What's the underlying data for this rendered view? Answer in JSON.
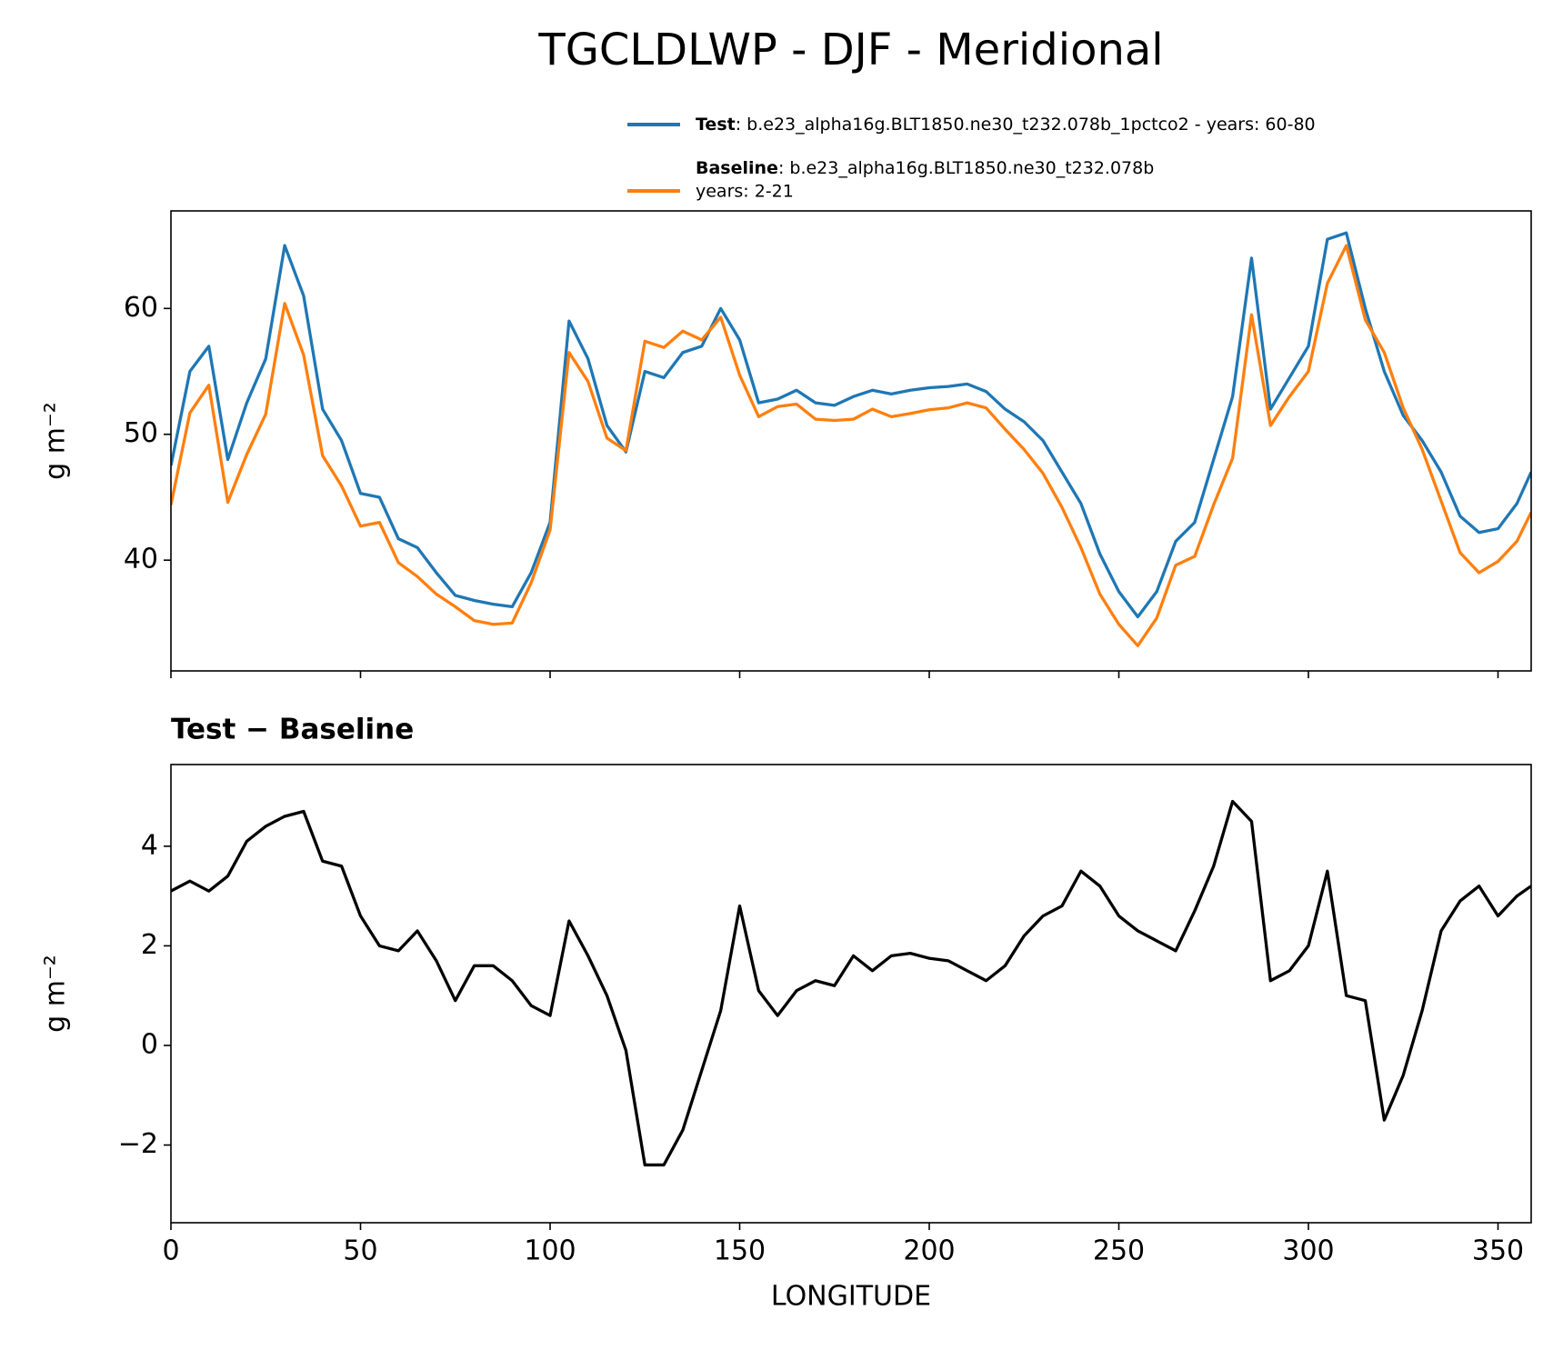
{
  "title": "TGCLDLWP - DJF - Meridional",
  "chart_data": [
    {
      "type": "line",
      "x": [
        0,
        5,
        10,
        15,
        20,
        25,
        30,
        35,
        40,
        45,
        50,
        55,
        60,
        65,
        70,
        75,
        80,
        85,
        90,
        95,
        100,
        105,
        110,
        115,
        120,
        125,
        130,
        135,
        140,
        145,
        150,
        155,
        160,
        165,
        170,
        175,
        180,
        185,
        190,
        195,
        200,
        205,
        210,
        215,
        220,
        225,
        230,
        235,
        240,
        245,
        250,
        255,
        260,
        265,
        270,
        275,
        280,
        285,
        290,
        295,
        300,
        305,
        310,
        315,
        320,
        325,
        330,
        335,
        340,
        345,
        350,
        355,
        358.75
      ],
      "series": [
        {
          "name": "Test",
          "description": [
            ": b.e23_alpha16g.BLT1850.ne30_t232.078b_1pctco2 - years: 60-80"
          ],
          "color": "#1f77b4",
          "values": [
            47.5,
            55,
            57,
            48,
            52.5,
            56,
            65,
            61,
            52,
            49.5,
            45.3,
            45,
            41.7,
            41,
            39,
            37.2,
            36.8,
            36.5,
            36.3,
            39,
            43,
            59,
            56,
            50.7,
            48.6,
            55,
            54.5,
            56.5,
            57,
            60,
            57.5,
            52.5,
            52.8,
            53.5,
            52.5,
            52.3,
            53,
            53.5,
            53.2,
            53.5,
            53.7,
            53.8,
            54,
            53.4,
            52,
            51,
            49.5,
            47,
            44.5,
            40.5,
            37.5,
            35.5,
            37.5,
            41.5,
            43,
            48,
            53,
            64,
            52,
            54.5,
            57,
            65.5,
            66,
            60,
            55,
            51.5,
            49.5,
            47,
            43.5,
            42.2,
            42.5,
            44.5,
            47
          ]
        },
        {
          "name": "Baseline",
          "description": [
            ": b.e23_alpha16g.BLT1850.ne30_t232.078b",
            "years: 2-21"
          ],
          "color": "#ff7f0e",
          "values": [
            44.4,
            51.7,
            53.9,
            44.6,
            48.4,
            51.6,
            60.4,
            56.3,
            48.3,
            45.9,
            42.7,
            43,
            39.8,
            38.7,
            37.3,
            36.3,
            35.2,
            34.9,
            35,
            38.2,
            42.4,
            56.5,
            54.2,
            49.7,
            48.7,
            57.4,
            56.9,
            58.2,
            57.5,
            59.3,
            54.7,
            51.4,
            52.2,
            52.4,
            51.2,
            51.1,
            51.2,
            52,
            51.4,
            51.65,
            51.95,
            52.1,
            52.5,
            52.1,
            50.4,
            48.8,
            46.9,
            44.2,
            41,
            37.3,
            34.9,
            33.2,
            35.4,
            39.6,
            40.3,
            44.4,
            48.1,
            59.5,
            50.7,
            53,
            55,
            62,
            65,
            59.1,
            56.5,
            52.1,
            48.8,
            44.7,
            40.6,
            39,
            39.9,
            41.5,
            43.8
          ]
        }
      ],
      "ylabel": "g m⁻²",
      "xlim": [
        0,
        358.75
      ],
      "xticks": [
        0,
        50,
        100,
        150,
        200,
        250,
        300,
        350
      ],
      "show_xtick_labels": false,
      "ylim": [
        31.2,
        67.75
      ],
      "yticks": [
        40,
        50,
        60
      ]
    },
    {
      "type": "line",
      "title": "Test − Baseline",
      "x": [
        0,
        5,
        10,
        15,
        20,
        25,
        30,
        35,
        40,
        45,
        50,
        55,
        60,
        65,
        70,
        75,
        80,
        85,
        90,
        95,
        100,
        105,
        110,
        115,
        120,
        125,
        130,
        135,
        140,
        145,
        150,
        155,
        160,
        165,
        170,
        175,
        180,
        185,
        190,
        195,
        200,
        205,
        210,
        215,
        220,
        225,
        230,
        235,
        240,
        245,
        250,
        255,
        260,
        265,
        270,
        275,
        280,
        285,
        290,
        295,
        300,
        305,
        310,
        315,
        320,
        325,
        330,
        335,
        340,
        345,
        350,
        355,
        358.75
      ],
      "series": [
        {
          "color": "#000000",
          "values": [
            3.1,
            3.3,
            3.1,
            3.4,
            4.1,
            4.4,
            4.6,
            4.7,
            3.7,
            3.6,
            2.6,
            2,
            1.9,
            2.3,
            1.7,
            0.9,
            1.6,
            1.6,
            1.3,
            0.8,
            0.6,
            2.5,
            1.8,
            1,
            -0.1,
            -2.4,
            -2.4,
            -1.7,
            -0.5,
            0.7,
            2.8,
            1.1,
            0.6,
            1.1,
            1.3,
            1.2,
            1.8,
            1.5,
            1.8,
            1.85,
            1.75,
            1.7,
            1.5,
            1.3,
            1.6,
            2.2,
            2.6,
            2.8,
            3.5,
            3.2,
            2.6,
            2.3,
            2.1,
            1.9,
            2.7,
            3.6,
            4.9,
            4.5,
            1.3,
            1.5,
            2,
            3.5,
            1,
            0.9,
            -1.5,
            -0.6,
            0.7,
            2.3,
            2.9,
            3.2,
            2.6,
            3,
            3.2
          ]
        }
      ],
      "xlabel": "LONGITUDE",
      "ylabel": "g m⁻²",
      "xlim": [
        0,
        358.75
      ],
      "xticks": [
        0,
        50,
        100,
        150,
        200,
        250,
        300,
        350
      ],
      "show_xtick_labels": true,
      "ylim": [
        -3.56,
        5.64
      ],
      "yticks": [
        {
          "value": -2,
          "label": "−2"
        },
        0,
        2,
        4
      ]
    }
  ]
}
